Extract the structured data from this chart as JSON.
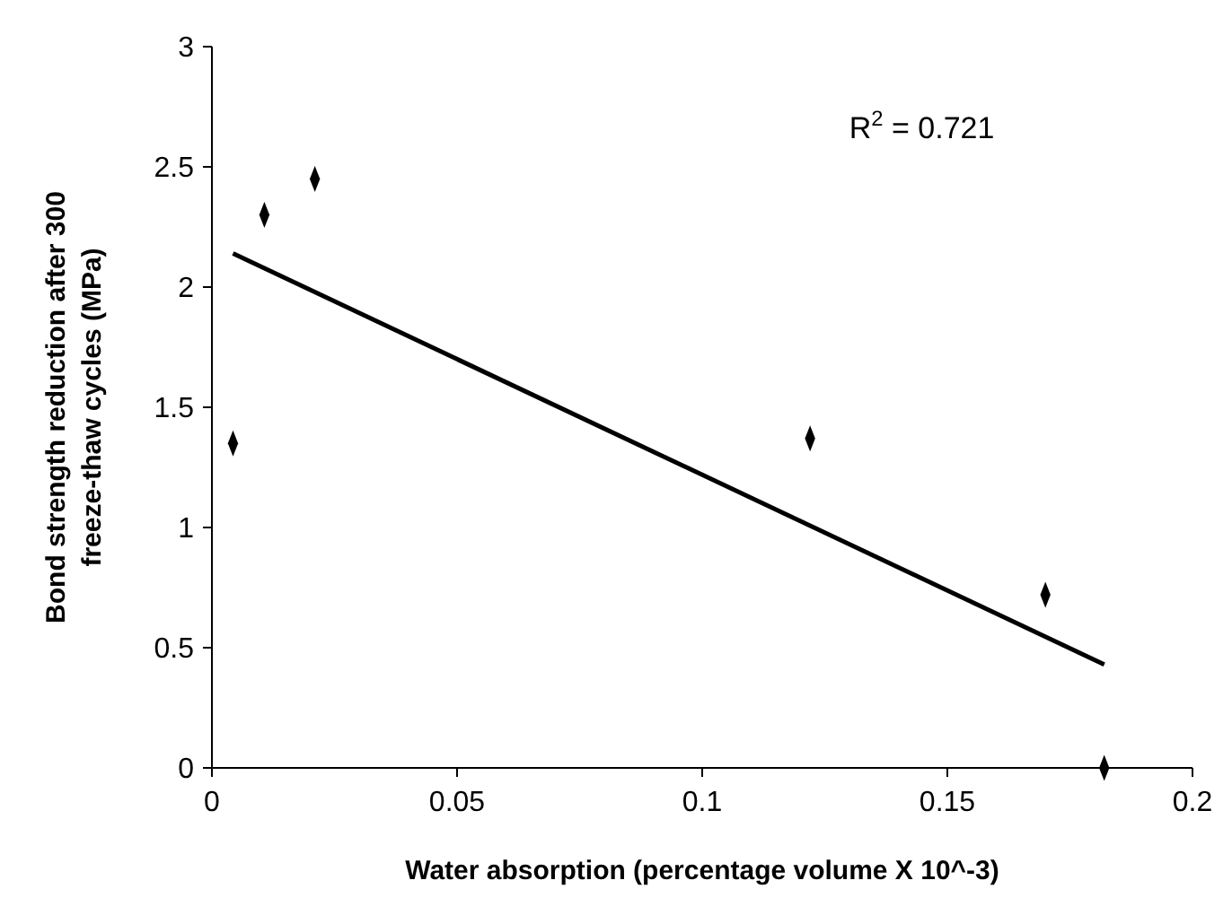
{
  "chart_data": {
    "type": "scatter",
    "xlabel": "Water absorption (percentage volume X 10^-3)",
    "ylabel": "Bond strength reduction after 300 freeze-thaw cycles (MPa)",
    "xlim": [
      0,
      0.2
    ],
    "xticks": [
      0,
      0.05,
      0.1,
      0.15,
      0.2
    ],
    "ylim": [
      0,
      3
    ],
    "yticks": [
      0,
      0.5,
      1,
      1.5,
      2,
      2.5,
      3
    ],
    "grid": false,
    "series": [
      {
        "marker": "diamond",
        "color": "#000000",
        "x": [
          0.0043,
          0.0107,
          0.021,
          0.122,
          0.17,
          0.182
        ],
        "values": [
          1.35,
          2.3,
          2.45,
          1.37,
          0.72,
          0
        ]
      },
      {
        "type": "line",
        "color": "#000000",
        "x": [
          0.0043,
          0.182
        ],
        "values": [
          2.14,
          0.43
        ],
        "line_style": "solid"
      }
    ],
    "annotations": [
      "R$^{2}$ = 0.721"
    ]
  }
}
